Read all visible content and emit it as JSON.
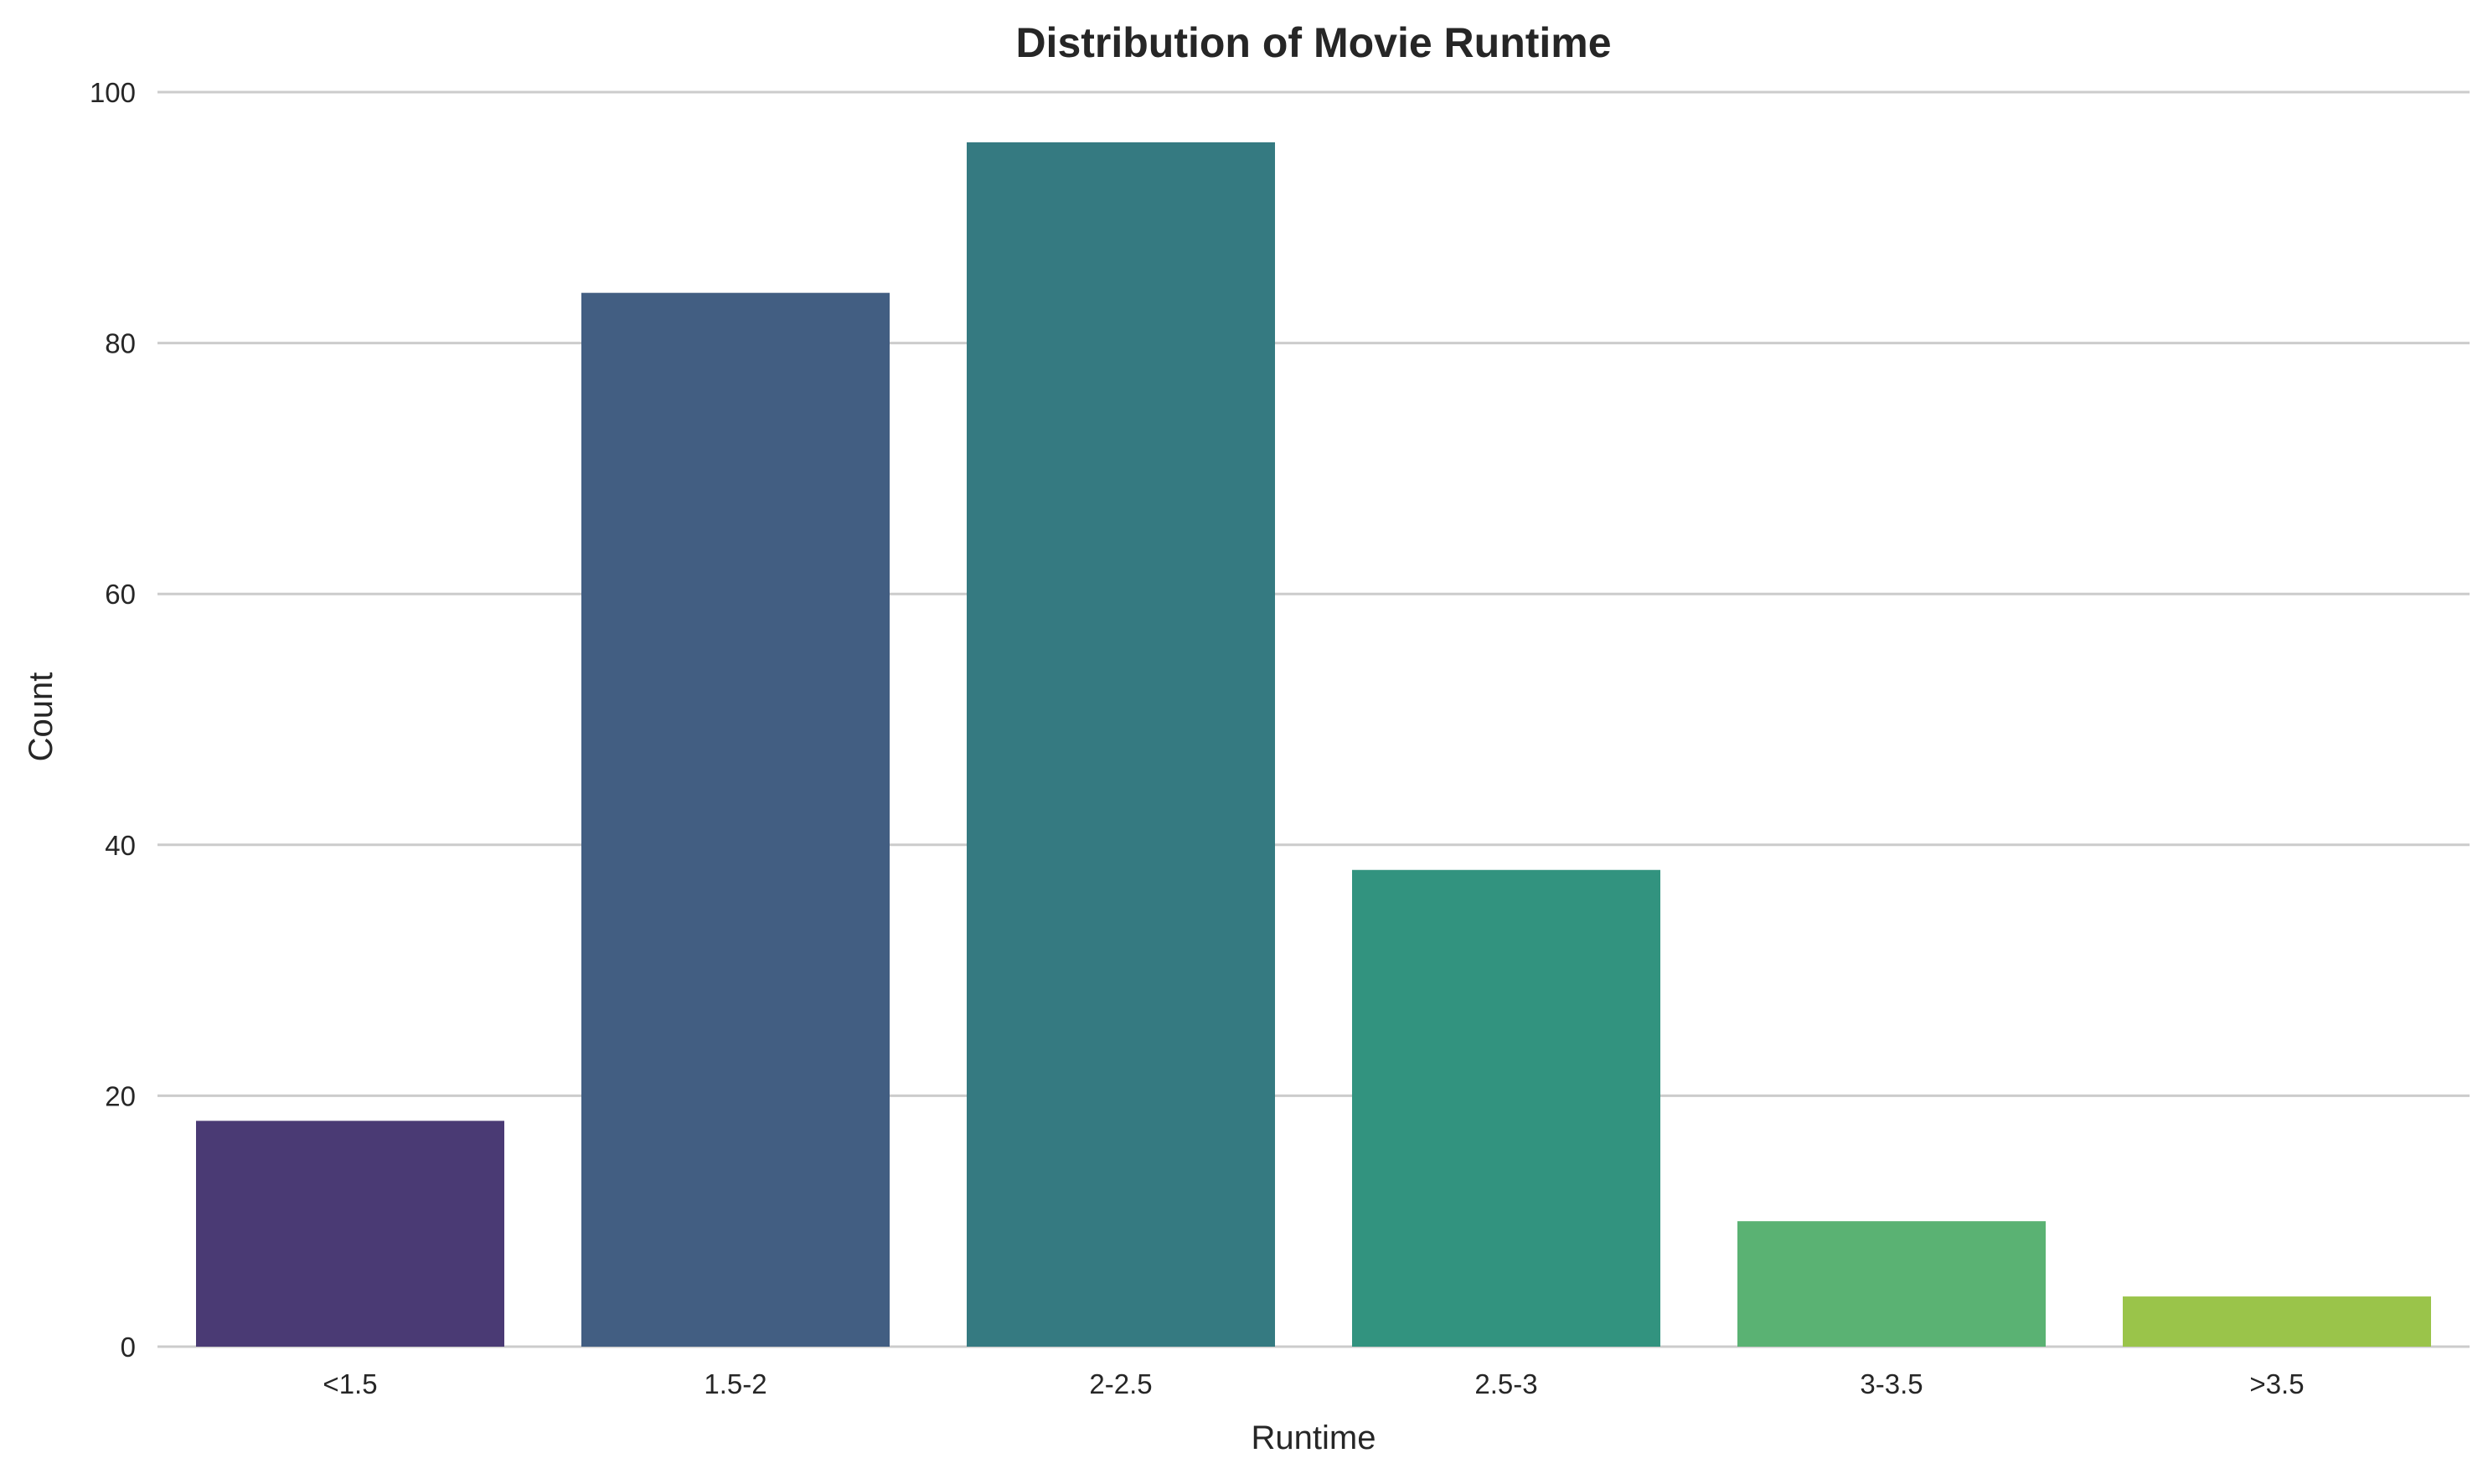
{
  "chart_data": {
    "type": "bar",
    "title": "Distribution of Movie Runtime",
    "xlabel": "Runtime",
    "ylabel": "Count",
    "categories": [
      "<1.5",
      "1.5-2",
      "2-2.5",
      "2.5-3",
      "3-3.5",
      ">3.5"
    ],
    "values": [
      18,
      84,
      96,
      38,
      10,
      4
    ],
    "ylim": [
      0,
      100
    ],
    "yticks": [
      0,
      20,
      40,
      60,
      80,
      100
    ],
    "ytick_labels": [
      "0",
      "20",
      "40",
      "60",
      "80",
      "100"
    ],
    "grid": "horizontal",
    "legend": "none",
    "colors": [
      "#4a3a74",
      "#425e82",
      "#357a81",
      "#32937f",
      "#5ab273",
      "#9ac44a"
    ],
    "gridline_color": "#cccccc",
    "background_color": "#ffffff"
  }
}
